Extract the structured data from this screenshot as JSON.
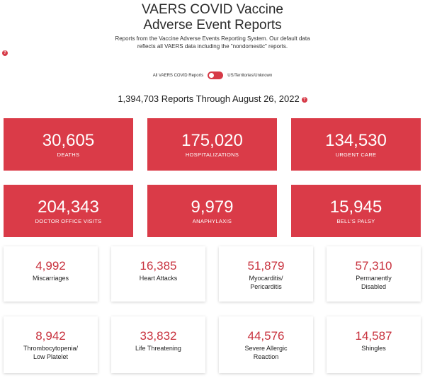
{
  "page": {
    "title_line1": "VAERS COVID Vaccine",
    "title_line2": "Adverse Event Reports",
    "intro_line1": "Reports from the Vaccine Adverse Events Reporting System. Our default data",
    "intro_line2": "reflects all VAERS data including the \"nondomestic\" reports.",
    "help_icon": "?",
    "toggle_left": "All VAERS COVID Reports",
    "toggle_right": "US/Territories/Unknown",
    "total": "1,394,703 Reports Through August 26, 2022"
  },
  "red_cards": [
    {
      "value": "30,605",
      "label": "DEATHS"
    },
    {
      "value": "175,020",
      "label": "HOSPITALIZATIONS"
    },
    {
      "value": "134,530",
      "label": "URGENT CARE"
    },
    {
      "value": "204,343",
      "label": "DOCTOR OFFICE VISITS"
    },
    {
      "value": "9,979",
      "label": "ANAPHYLAXIS"
    },
    {
      "value": "15,945",
      "label": "BELL'S PALSY"
    }
  ],
  "white_cards": [
    {
      "value": "4,992",
      "label": "Miscarriages"
    },
    {
      "value": "16,385",
      "label": "Heart Attacks"
    },
    {
      "value": "51,879",
      "label": "Myocarditis/\nPericarditis"
    },
    {
      "value": "57,310",
      "label": "Permanently\nDisabled"
    },
    {
      "value": "8,942",
      "label": "Thrombocytopenia/\nLow Platelet"
    },
    {
      "value": "33,832",
      "label": "Life Threatening"
    },
    {
      "value": "44,576",
      "label": "Severe Allergic\nReaction"
    },
    {
      "value": "14,587",
      "label": "Shingles"
    }
  ],
  "colors": {
    "accent": "#da3b48",
    "value_red": "#c8323e"
  }
}
